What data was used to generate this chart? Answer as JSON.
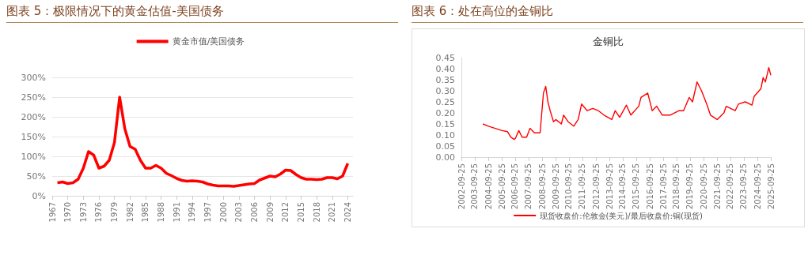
{
  "chart_data": [
    {
      "type": "line",
      "title": "图表 5：极限情况下的黄金估值-美国债务",
      "x": [
        1968,
        1969,
        1970,
        1971,
        1972,
        1973,
        1974,
        1975,
        1976,
        1977,
        1978,
        1979,
        1980,
        1981,
        1982,
        1983,
        1984,
        1985,
        1986,
        1987,
        1988,
        1989,
        1990,
        1991,
        1992,
        1993,
        1994,
        1995,
        1996,
        1997,
        1998,
        1999,
        2000,
        2001,
        2002,
        2003,
        2004,
        2005,
        2006,
        2007,
        2008,
        2009,
        2010,
        2011,
        2012,
        2013,
        2014,
        2015,
        2016,
        2017,
        2018,
        2019,
        2020,
        2021,
        2022,
        2023,
        2024
      ],
      "series": [
        {
          "name": "黄金市值/美国债务",
          "color": "#ff0000",
          "values": [
            33,
            35,
            31,
            33,
            42,
            70,
            112,
            103,
            70,
            75,
            90,
            135,
            250,
            170,
            125,
            118,
            90,
            70,
            70,
            77,
            70,
            57,
            51,
            44,
            39,
            37,
            38,
            37,
            35,
            30,
            27,
            25,
            25,
            25,
            24,
            26,
            28,
            30,
            31,
            40,
            45,
            50,
            48,
            55,
            65,
            64,
            54,
            46,
            42,
            42,
            41,
            42,
            46,
            46,
            43,
            50,
            82
          ]
        }
      ],
      "xlim": [
        1967,
        2025
      ],
      "xticks": [
        1967,
        1970,
        1973,
        1976,
        1979,
        1982,
        1985,
        1988,
        1991,
        1994,
        1997,
        2000,
        2003,
        2006,
        2009,
        2012,
        2015,
        2018,
        2021,
        2024
      ],
      "ylim": [
        0,
        300
      ],
      "yticks": [
        {
          "value": 0,
          "label": "0%"
        },
        {
          "value": 50,
          "label": "50%"
        },
        {
          "value": 100,
          "label": "100%"
        },
        {
          "value": 150,
          "label": "150%"
        },
        {
          "value": 200,
          "label": "200%"
        },
        {
          "value": 250,
          "label": "250%"
        },
        {
          "value": 300,
          "label": "300%"
        }
      ],
      "grid": "y",
      "legend": "top"
    },
    {
      "type": "line",
      "title": "图表 6：处在高位的金铜比",
      "subtitle": "金铜比",
      "x": [
        "2004-05",
        "2004-10",
        "2005-04",
        "2005-10",
        "2006-03",
        "2006-06",
        "2006-09",
        "2006-10",
        "2007-01",
        "2007-04",
        "2007-08",
        "2007-11",
        "2008-03",
        "2008-08",
        "2008-11",
        "2009-01",
        "2009-03",
        "2009-05",
        "2009-08",
        "2009-10",
        "2010-03",
        "2010-05",
        "2010-09",
        "2011-02",
        "2011-06",
        "2011-09",
        "2012-02",
        "2012-07",
        "2012-12",
        "2013-05",
        "2013-12",
        "2014-03",
        "2014-07",
        "2015-01",
        "2015-05",
        "2015-12",
        "2016-02",
        "2016-08",
        "2016-12",
        "2017-04",
        "2017-09",
        "2018-04",
        "2018-12",
        "2019-04",
        "2019-09",
        "2019-12",
        "2020-04",
        "2020-08",
        "2021-01",
        "2021-04",
        "2021-10",
        "2022-04",
        "2022-06",
        "2023-02",
        "2023-05",
        "2023-11",
        "2024-05",
        "2024-07",
        "2025-01",
        "2025-03",
        "2025-05",
        "2025-08",
        "2025-09-25"
      ],
      "series": [
        {
          "name": "现货收盘价:伦敦金(美元)/最后收盘价:铜(现货)",
          "color": "#ff0000",
          "values": [
            0.15,
            0.14,
            0.13,
            0.12,
            0.115,
            0.09,
            0.08,
            0.085,
            0.12,
            0.09,
            0.09,
            0.13,
            0.11,
            0.11,
            0.29,
            0.32,
            0.25,
            0.21,
            0.16,
            0.17,
            0.15,
            0.19,
            0.16,
            0.14,
            0.17,
            0.24,
            0.21,
            0.22,
            0.21,
            0.19,
            0.17,
            0.21,
            0.18,
            0.235,
            0.19,
            0.23,
            0.27,
            0.29,
            0.21,
            0.23,
            0.19,
            0.19,
            0.21,
            0.21,
            0.27,
            0.25,
            0.34,
            0.3,
            0.235,
            0.19,
            0.17,
            0.2,
            0.23,
            0.21,
            0.24,
            0.25,
            0.235,
            0.275,
            0.31,
            0.36,
            0.34,
            0.405,
            0.37
          ]
        }
      ],
      "xlim": [
        "2002-09-25",
        "2025-09-25"
      ],
      "xticks": [
        "2002-09-25",
        "2003-09-25",
        "2004-09-25",
        "2005-09-25",
        "2006-09-25",
        "2007-09-25",
        "2008-09-25",
        "2009-09-25",
        "2010-09-25",
        "2011-09-25",
        "2012-09-25",
        "2013-09-25",
        "2014-09-25",
        "2015-09-25",
        "2016-09-25",
        "2017-09-25",
        "2018-09-25",
        "2019-09-25",
        "2020-09-25",
        "2021-09-25",
        "2022-09-25",
        "2023-09-25",
        "2024-09-25",
        "2025-09-25"
      ],
      "ylim": [
        0,
        0.45
      ],
      "yticks": [
        {
          "value": 0,
          "label": "0.00"
        },
        {
          "value": 0.05,
          "label": "0.05"
        },
        {
          "value": 0.1,
          "label": "0.10"
        },
        {
          "value": 0.15,
          "label": "0.15"
        },
        {
          "value": 0.2,
          "label": "0.20"
        },
        {
          "value": 0.25,
          "label": "0.25"
        },
        {
          "value": 0.3,
          "label": "0.30"
        },
        {
          "value": 0.35,
          "label": "0.35"
        },
        {
          "value": 0.4,
          "label": "0.40"
        },
        {
          "value": 0.45,
          "label": "0.45"
        }
      ],
      "grid": false,
      "legend": "bottom"
    }
  ]
}
